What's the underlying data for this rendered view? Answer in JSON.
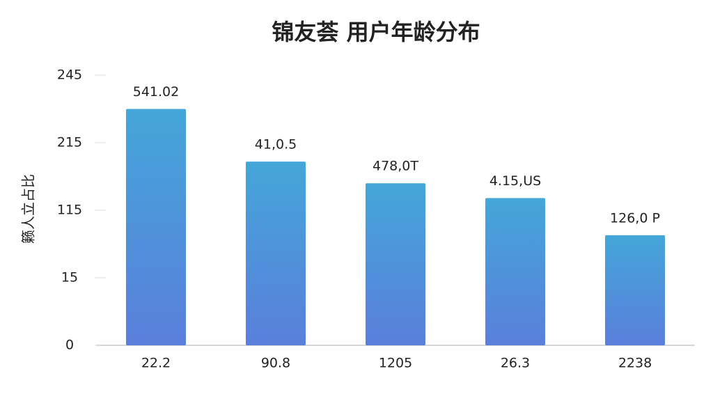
{
  "chart_data": {
    "type": "bar",
    "title": "锦友荟 用户年龄分布",
    "y_label": "籁人立占比",
    "categories": [
      "22.2",
      "90.8",
      "1205",
      "26.3",
      "2238"
    ],
    "values": [
      3.5,
      2.72,
      2.4,
      2.18,
      1.63
    ],
    "annotations": [
      "541.02",
      "41,0.5",
      "478,0T",
      "4.15,US",
      "126,0 P"
    ],
    "color": [
      "#44a6d9",
      "#5a7fdb"
    ],
    "ylim": [
      0,
      4
    ],
    "yticks": [
      {
        "value": 0,
        "label": "0"
      },
      {
        "value": 1,
        "label": "15"
      },
      {
        "value": 2,
        "label": "115"
      },
      {
        "value": 3,
        "label": "215"
      },
      {
        "value": 4,
        "label": "245"
      }
    ]
  }
}
